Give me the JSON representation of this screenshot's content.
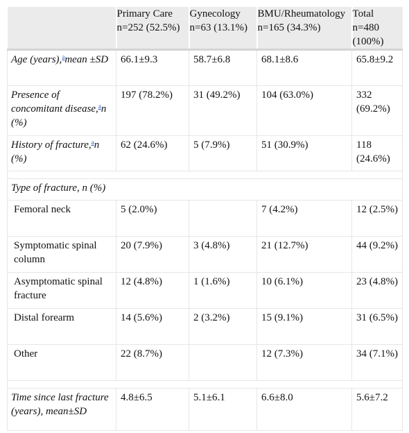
{
  "header": {
    "blank": "",
    "columns": [
      {
        "name": "Primary Care",
        "n": "n=252 (52.5%)"
      },
      {
        "name": "Gynecology",
        "n": "n=63 (13.1%)"
      },
      {
        "name": "BMU/Rheumatology",
        "n": "n=165 (34.3%)"
      },
      {
        "name": "Total",
        "n": "n=480 (100%)"
      }
    ]
  },
  "rows": {
    "age": {
      "label_pre": "Age (years),",
      "footnote": "a",
      "label_post": "mean ±SD",
      "values": [
        "66.1±9.3",
        "58.7±6.8",
        "68.1±8.6",
        "65.8±9.2"
      ]
    },
    "disease": {
      "label_pre": "Presence of concomitant disease,",
      "footnote": "a",
      "label_post": "n (%)",
      "values": [
        "197 (78.2%)",
        "31 (49.2%)",
        "104 (63.0%)",
        "332 (69.2%)"
      ]
    },
    "history": {
      "label_pre": "History of fracture,",
      "footnote": "a",
      "label_post": "n (%)",
      "values": [
        "62 (24.6%)",
        "5 (7.9%)",
        "51 (30.9%)",
        "118 (24.6%)"
      ]
    },
    "type_header": "Type of fracture, n (%)",
    "femoral": {
      "label": "Femoral neck",
      "values": [
        "5 (2.0%)",
        "",
        "7 (4.2%)",
        "12 (2.5%)"
      ]
    },
    "spinal_sym": {
      "label": "Symptomatic spinal column",
      "values": [
        "20 (7.9%)",
        "3 (4.8%)",
        "21 (12.7%)",
        "44 (9.2%)"
      ]
    },
    "spinal_asym": {
      "label": "Asymptomatic spinal fracture",
      "values": [
        "12 (4.8%)",
        "1 (1.6%)",
        "10 (6.1%)",
        "23 (4.8%)"
      ]
    },
    "forearm": {
      "label": "Distal forearm",
      "values": [
        "14 (5.6%)",
        "2 (3.2%)",
        "15 (9.1%)",
        "31 (6.5%)"
      ]
    },
    "other": {
      "label": "Other",
      "values": [
        "22 (8.7%)",
        "",
        "12 (7.3%)",
        "34 (7.1%)"
      ]
    },
    "time": {
      "label": "Time since last fracture (years), mean±SD",
      "values": [
        "4.8±6.5",
        "5.1±6.1",
        "6.6±8.0",
        "5.6±7.2"
      ]
    }
  }
}
